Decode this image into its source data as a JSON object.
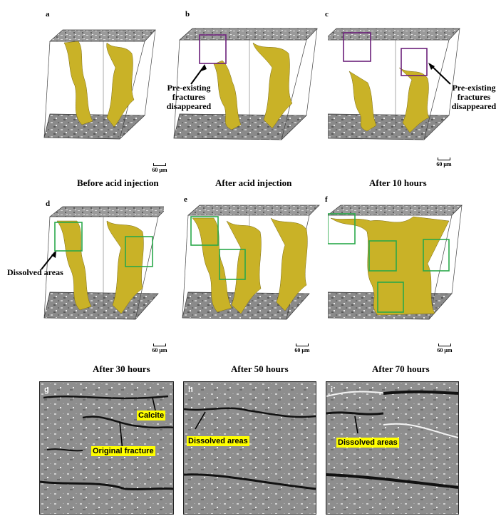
{
  "panels": [
    {
      "label": "a",
      "caption": "Before acid injection",
      "scale": "60 μm"
    },
    {
      "label": "b",
      "caption": "After acid injection",
      "scale": "60 μm"
    },
    {
      "label": "c",
      "caption": "After 10 hours",
      "scale": "60 μm"
    },
    {
      "label": "d",
      "caption": "After 30 hours",
      "scale": "60 μm"
    },
    {
      "label": "e",
      "caption": "After 50 hours",
      "scale": "60 μm"
    },
    {
      "label": "f",
      "caption": "After 70 hours",
      "scale": "60 μm"
    }
  ],
  "annotations": {
    "b_line1": "Pre-existing",
    "b_line2": "fractures",
    "b_line3": "disappeared",
    "c_line1": "Pre-existing",
    "c_line2": "fractures",
    "c_line3": "disappeared",
    "d": "Dissolved areas"
  },
  "slices": [
    {
      "label": "g",
      "tags": [
        "Calcite",
        "Original fracture"
      ]
    },
    {
      "label": "h",
      "tags": [
        "Dissolved areas"
      ]
    },
    {
      "label": "i",
      "tags": [
        "Dissolved areas"
      ]
    }
  ],
  "colors": {
    "fracture": "#c9b227",
    "box_purple": "#6b1f7a",
    "box_green": "#2aa84a"
  }
}
